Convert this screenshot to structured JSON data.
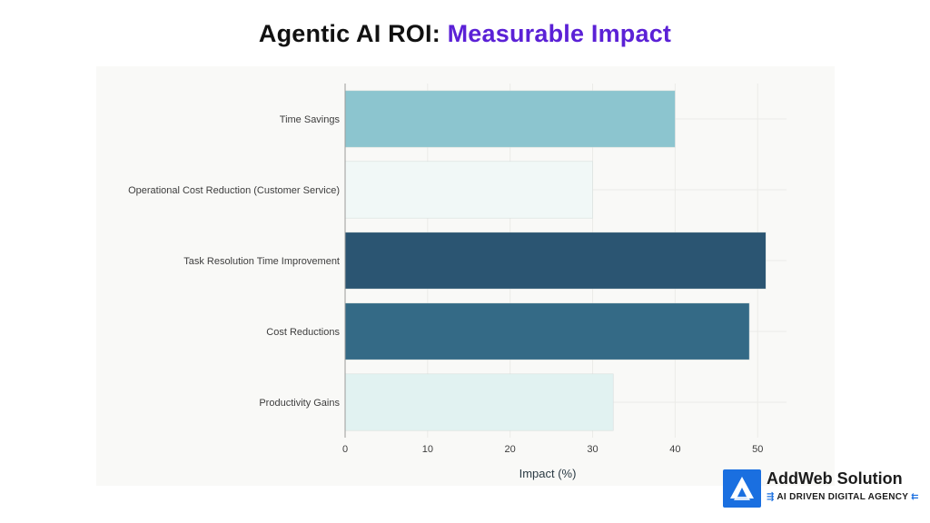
{
  "title": {
    "part1": "Agentic AI ROI:",
    "part2": "Measurable Impact"
  },
  "brand": {
    "name": "AddWeb Solution",
    "tagline": "AI DRIVEN DIGITAL AGENCY",
    "tag_left_glyph": "⇶",
    "tag_right_glyph": "⇇",
    "logo_icon": "addweb-logo-icon",
    "logo_color": "#1a6fe0"
  },
  "chart_data": {
    "type": "bar",
    "orientation": "horizontal",
    "categories": [
      "Time Savings",
      "Operational Cost Reduction (Customer Service)",
      "Task Resolution Time Improvement",
      "Cost Reductions",
      "Productivity Gains"
    ],
    "values": [
      40,
      30,
      51,
      49,
      32.5
    ],
    "colors": [
      "#8cc5cf",
      "#f1f8f7",
      "#2b5572",
      "#346a86",
      "#e1f2f1"
    ],
    "title": "Agentic AI ROI: Measurable Impact",
    "xlabel": "Impact (%)",
    "ylabel": "",
    "xlim": [
      0,
      53.5
    ],
    "xticks": [
      0,
      10,
      20,
      30,
      40,
      50
    ],
    "grid": true,
    "legend": "none"
  }
}
